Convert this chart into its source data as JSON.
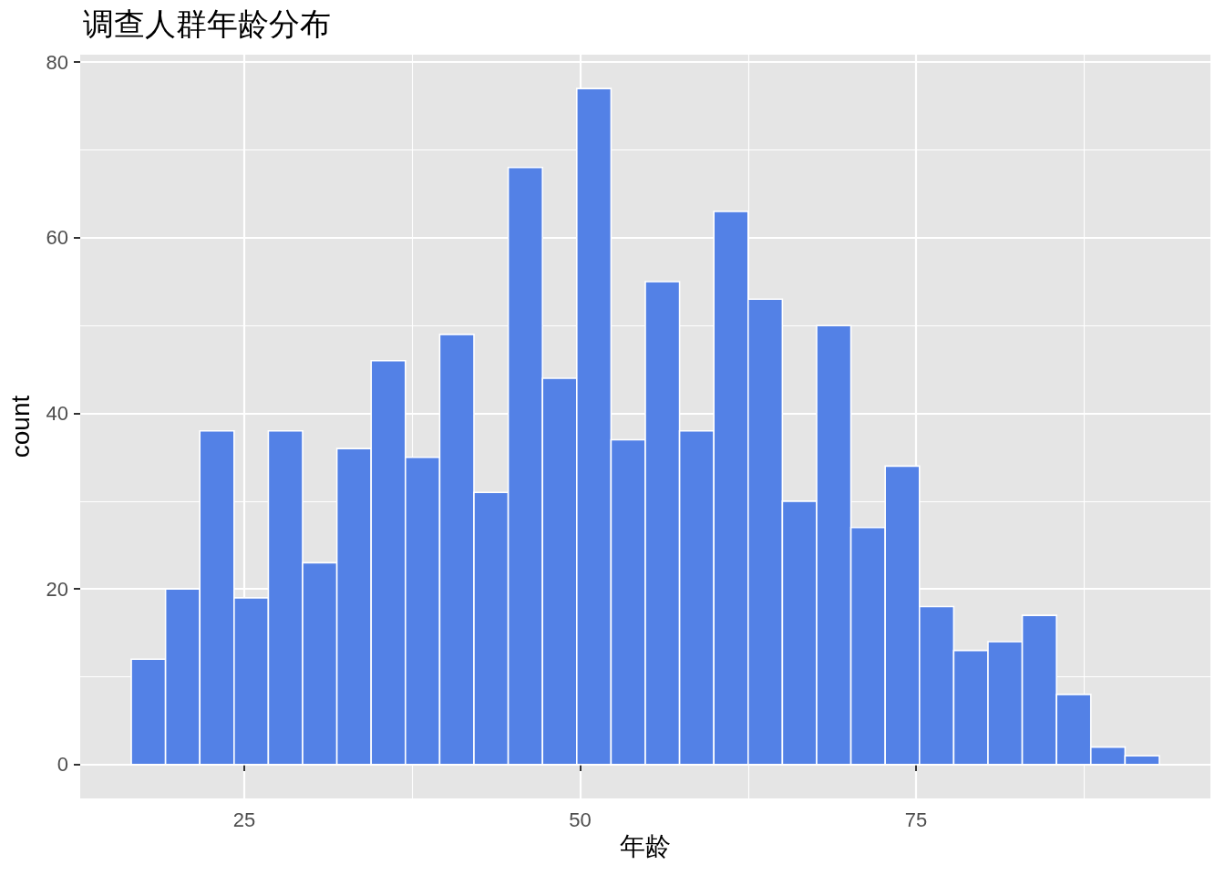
{
  "chart_data": {
    "type": "histogram",
    "title": "调查人群年龄分布",
    "xlabel": "年龄",
    "ylabel": "count",
    "bins": [
      16.6,
      19.15,
      21.7,
      24.25,
      26.8,
      29.35,
      31.9,
      34.45,
      37.0,
      39.55,
      42.1,
      44.65,
      47.2,
      49.75,
      52.3,
      54.85,
      57.4,
      59.95,
      62.5,
      65.05,
      67.6,
      70.15,
      72.7,
      75.25,
      77.8,
      80.35,
      82.9,
      85.45,
      88.0,
      90.55,
      93.1
    ],
    "values": [
      12,
      20,
      38,
      19,
      38,
      23,
      36,
      46,
      35,
      49,
      31,
      68,
      44,
      77,
      37,
      55,
      38,
      63,
      53,
      30,
      50,
      27,
      34,
      18,
      13,
      14,
      17,
      8,
      2,
      1
    ],
    "color": "#5381e6",
    "xlim": [
      12.8,
      96.9
    ],
    "xticks": [
      25,
      50,
      75
    ],
    "ylim": [
      -3.85,
      80.85
    ],
    "yticks": [
      0,
      20,
      40,
      60,
      80
    ],
    "grid": true
  }
}
